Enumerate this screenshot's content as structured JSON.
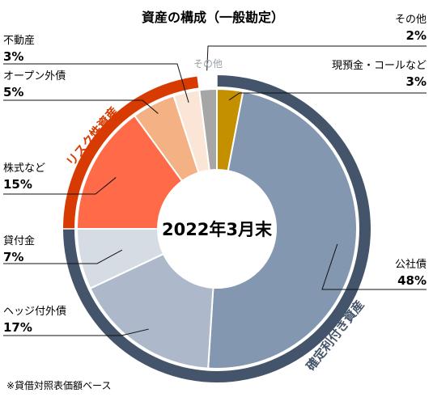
{
  "chart_data": {
    "type": "pie",
    "title": "資産の構成（一般勘定）",
    "center_label": "2022年3月末",
    "footnote": "※貸借対照表価額ベース",
    "slices": [
      {
        "name": "現預金・コールなど",
        "value": 3,
        "label": "3%",
        "color": "#c49000"
      },
      {
        "name": "公社債",
        "value": 48,
        "label": "48%",
        "color": "#8497b0"
      },
      {
        "name": "ヘッジ付外債",
        "value": 17,
        "label": "17%",
        "color": "#adb9ca"
      },
      {
        "name": "貸付金",
        "value": 7,
        "label": "7%",
        "color": "#d6dce4"
      },
      {
        "name": "株式など",
        "value": 15,
        "label": "15%",
        "color": "#ff6b48"
      },
      {
        "name": "オープン外債",
        "value": 5,
        "label": "5%",
        "color": "#f4b183"
      },
      {
        "name": "不動産",
        "value": 3,
        "label": "3%",
        "color": "#fbe5d6"
      },
      {
        "name": "その他",
        "value": 2,
        "label": "2%",
        "color": "#a6a6a6"
      }
    ],
    "groups": [
      {
        "name": "確定利付き資産",
        "color": "#44546a"
      },
      {
        "name": "リスク性資産",
        "color": "#d83b01"
      },
      {
        "name": "その他",
        "color": "#ffffff"
      }
    ]
  }
}
